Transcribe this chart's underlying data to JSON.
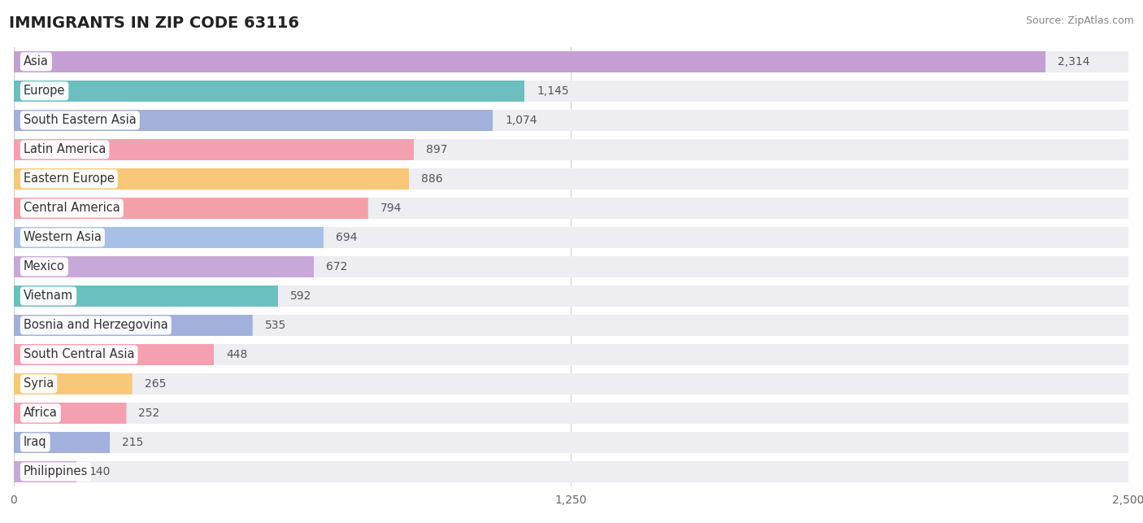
{
  "title": "IMMIGRANTS IN ZIP CODE 63116",
  "source": "Source: ZipAtlas.com",
  "categories": [
    "Asia",
    "Europe",
    "South Eastern Asia",
    "Latin America",
    "Eastern Europe",
    "Central America",
    "Western Asia",
    "Mexico",
    "Vietnam",
    "Bosnia and Herzegovina",
    "South Central Asia",
    "Syria",
    "Africa",
    "Iraq",
    "Philippines"
  ],
  "values": [
    2314,
    1145,
    1074,
    897,
    886,
    794,
    694,
    672,
    592,
    535,
    448,
    265,
    252,
    215,
    140
  ],
  "bar_colors": [
    "#c49fd4",
    "#6bbfbf",
    "#a3b0dc",
    "#f4a0b0",
    "#f8c878",
    "#f4a0a8",
    "#a8c0e8",
    "#c8a8d8",
    "#6bbfbf",
    "#a3b0dc",
    "#f4a0b0",
    "#f8c878",
    "#f4a0b0",
    "#a3b0dc",
    "#c8a8d8"
  ],
  "bar_bg_color": "#ededf2",
  "xlim": [
    0,
    2500
  ],
  "xticks": [
    0,
    1250,
    2500
  ],
  "title_fontsize": 14,
  "label_fontsize": 10.5,
  "value_fontsize": 10
}
